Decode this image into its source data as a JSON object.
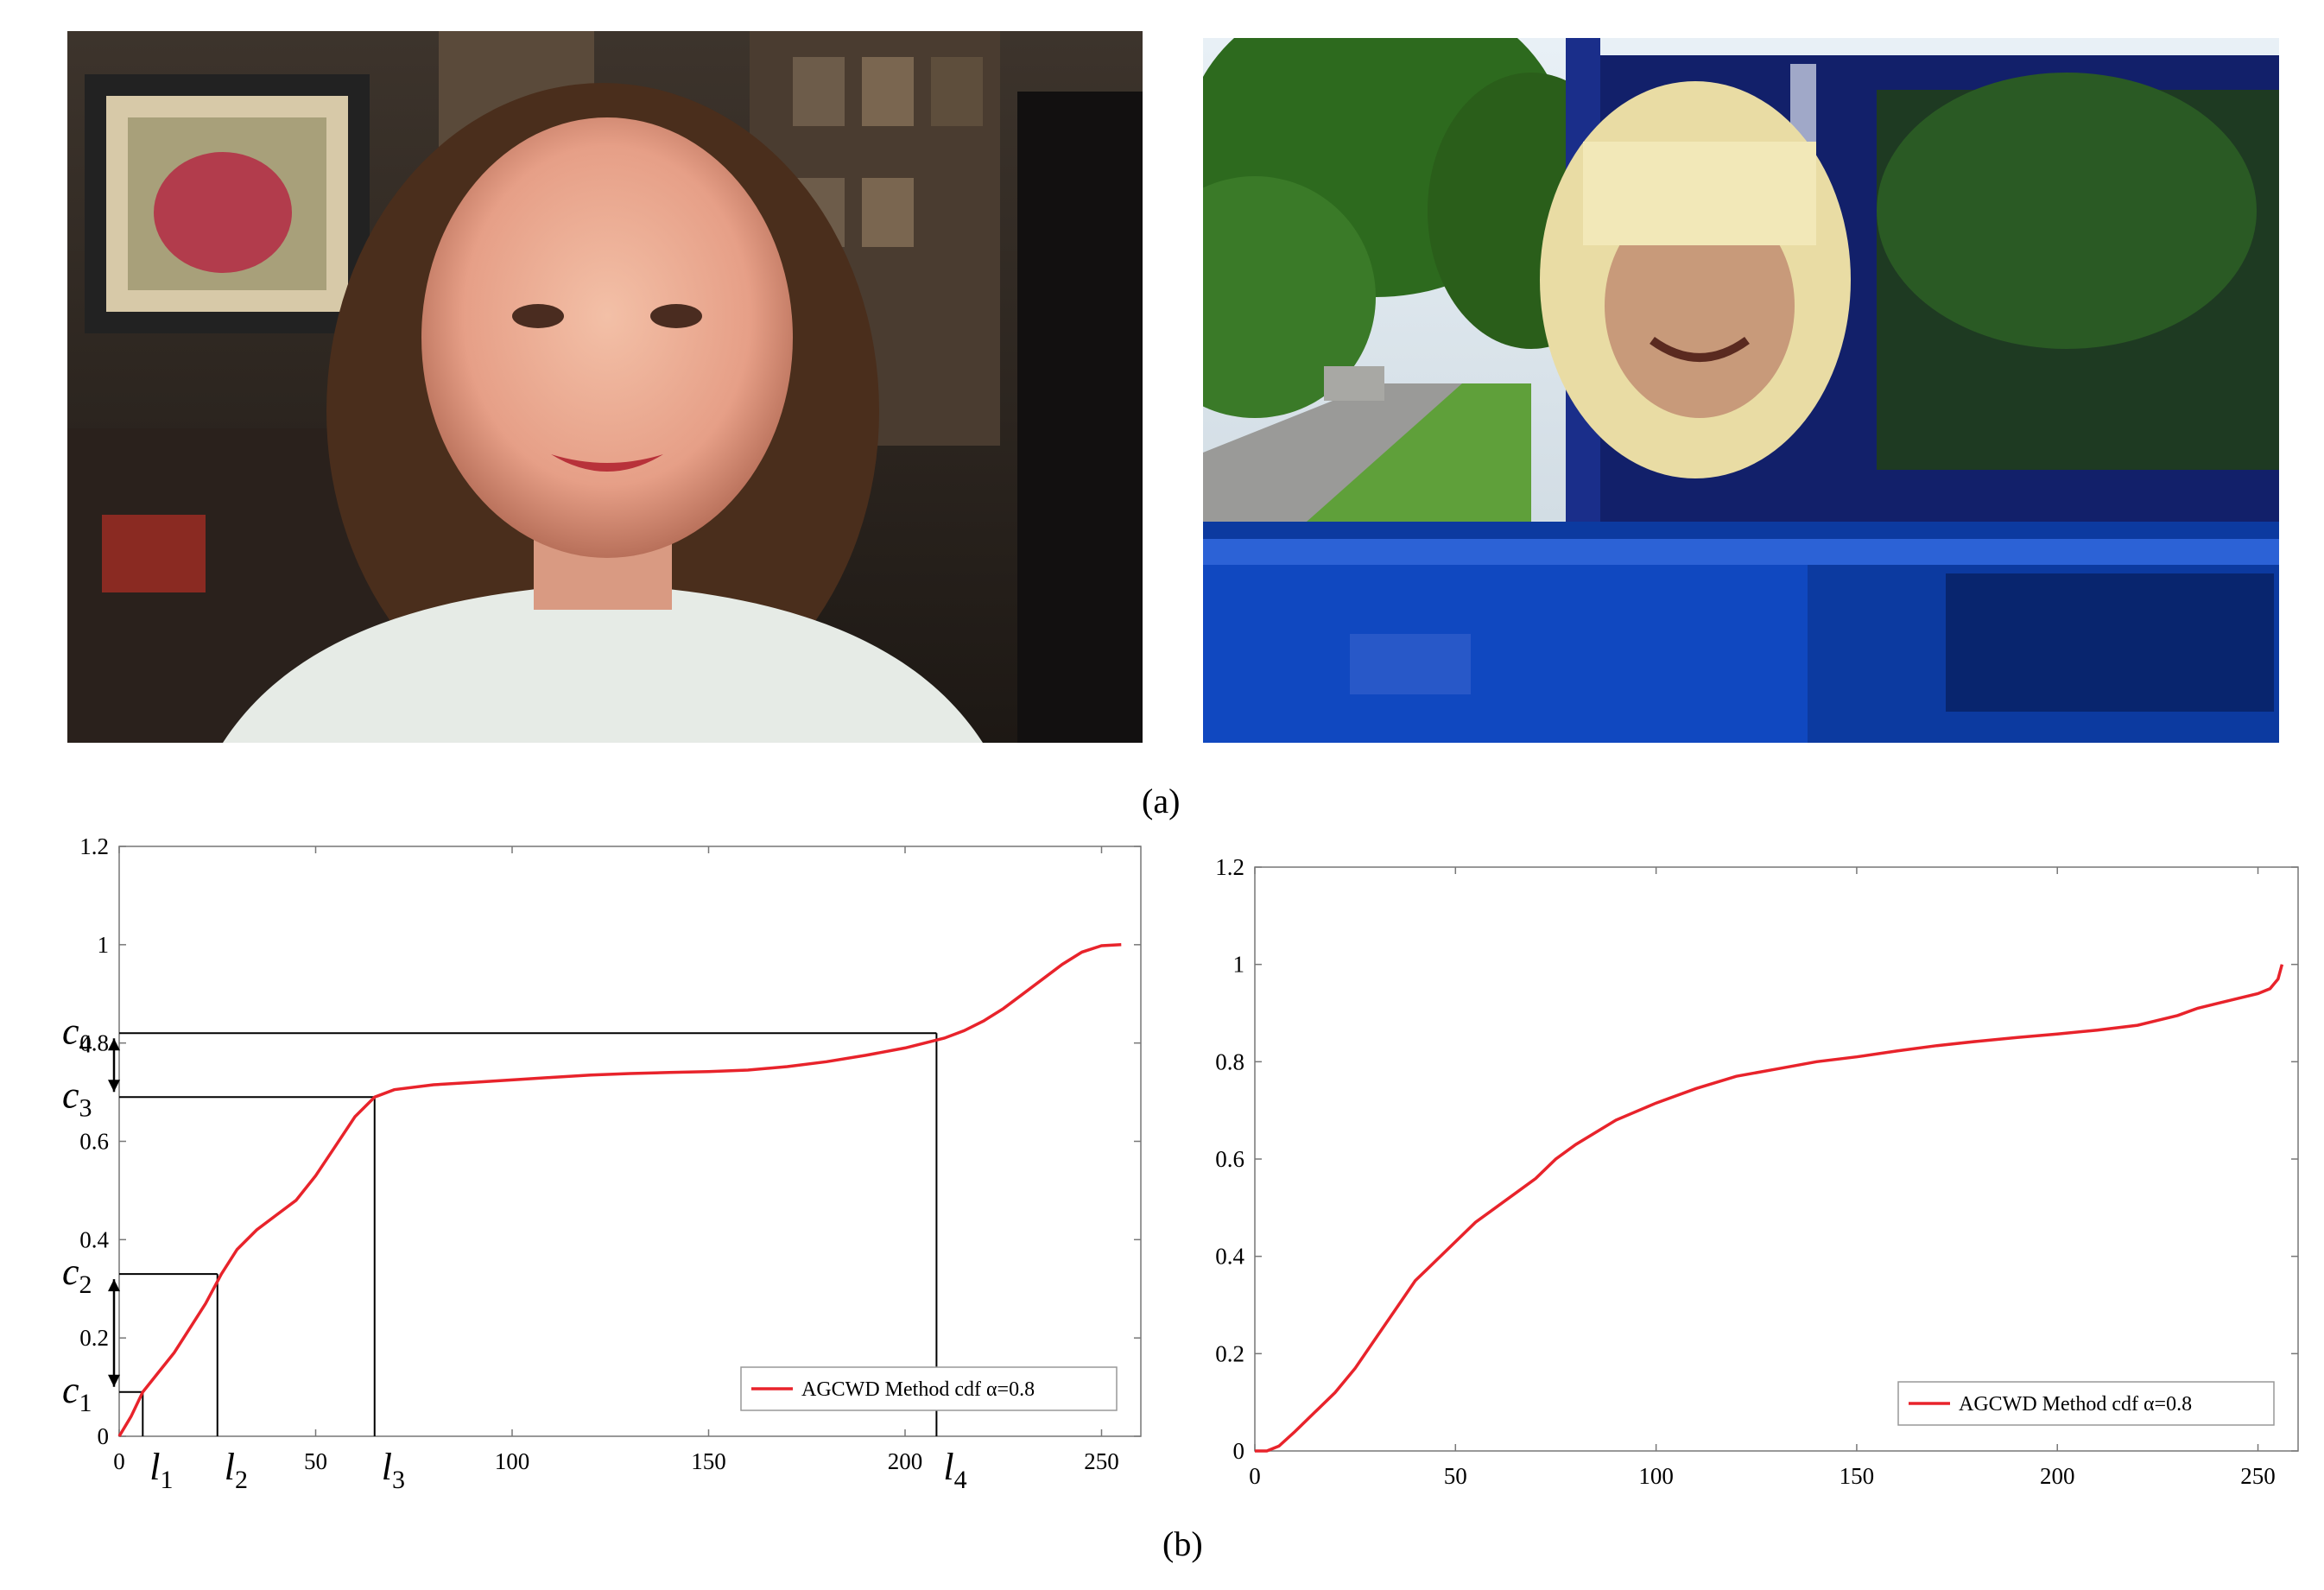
{
  "figure": {
    "caption_a": "(a)",
    "caption_b": "(b)"
  },
  "photos": [
    {
      "kind": "portrait-indoor"
    },
    {
      "kind": "child-in-pickup-truck"
    }
  ],
  "chart_data": [
    {
      "type": "line",
      "xlim": [
        0,
        260
      ],
      "ylim": [
        0,
        1.2
      ],
      "xticks": [
        0,
        50,
        100,
        150,
        200,
        250
      ],
      "yticks": [
        0,
        0.2,
        0.4,
        0.6,
        0.8,
        1,
        1.2
      ],
      "grid": false,
      "legend": "bottom-right",
      "color": "#e8232b",
      "series": [
        {
          "name": "AGCWD Method cdf α=0.8",
          "x": [
            0,
            3,
            6,
            10,
            14,
            18,
            22,
            26,
            30,
            35,
            40,
            45,
            50,
            55,
            60,
            65,
            70,
            80,
            90,
            100,
            110,
            120,
            130,
            140,
            150,
            160,
            170,
            180,
            190,
            200,
            205,
            210,
            215,
            220,
            225,
            230,
            235,
            240,
            245,
            250,
            255
          ],
          "y": [
            0,
            0.04,
            0.09,
            0.13,
            0.17,
            0.22,
            0.27,
            0.33,
            0.38,
            0.42,
            0.45,
            0.48,
            0.53,
            0.59,
            0.65,
            0.69,
            0.705,
            0.715,
            0.72,
            0.725,
            0.73,
            0.735,
            0.738,
            0.74,
            0.742,
            0.745,
            0.752,
            0.762,
            0.775,
            0.79,
            0.8,
            0.81,
            0.825,
            0.845,
            0.87,
            0.9,
            0.93,
            0.96,
            0.985,
            0.998,
            1.0
          ]
        }
      ],
      "annotations": {
        "levels": [
          {
            "label": "l",
            "sub": "1",
            "x": 6
          },
          {
            "label": "l",
            "sub": "2",
            "x": 25
          },
          {
            "label": "l",
            "sub": "3",
            "x": 65
          },
          {
            "label": "l",
            "sub": "4",
            "x": 208
          }
        ],
        "cdf_values": [
          {
            "label": "c",
            "sub": "1",
            "y": 0.09
          },
          {
            "label": "c",
            "sub": "2",
            "y": 0.33
          },
          {
            "label": "c",
            "sub": "3",
            "y": 0.69
          },
          {
            "label": "c",
            "sub": "4",
            "y": 0.82
          }
        ]
      }
    },
    {
      "type": "line",
      "xlim": [
        0,
        260
      ],
      "ylim": [
        0,
        1.2
      ],
      "xticks": [
        0,
        50,
        100,
        150,
        200,
        250
      ],
      "yticks": [
        0,
        0.2,
        0.4,
        0.6,
        0.8,
        1,
        1.2
      ],
      "grid": false,
      "legend": "bottom-right",
      "color": "#e8232b",
      "series": [
        {
          "name": "AGCWD Method cdf α=0.8",
          "x": [
            0,
            3,
            6,
            10,
            15,
            20,
            25,
            30,
            35,
            40,
            45,
            50,
            55,
            60,
            65,
            70,
            75,
            80,
            90,
            100,
            110,
            120,
            130,
            140,
            150,
            160,
            170,
            180,
            190,
            200,
            210,
            220,
            225,
            230,
            235,
            240,
            245,
            250,
            253,
            255,
            256
          ],
          "y": [
            0,
            0.0,
            0.01,
            0.04,
            0.08,
            0.12,
            0.17,
            0.23,
            0.29,
            0.35,
            0.39,
            0.43,
            0.47,
            0.5,
            0.53,
            0.56,
            0.6,
            0.63,
            0.68,
            0.715,
            0.745,
            0.77,
            0.785,
            0.8,
            0.81,
            0.822,
            0.833,
            0.842,
            0.85,
            0.857,
            0.865,
            0.875,
            0.885,
            0.895,
            0.91,
            0.92,
            0.93,
            0.94,
            0.95,
            0.97,
            1.0
          ]
        }
      ]
    }
  ]
}
